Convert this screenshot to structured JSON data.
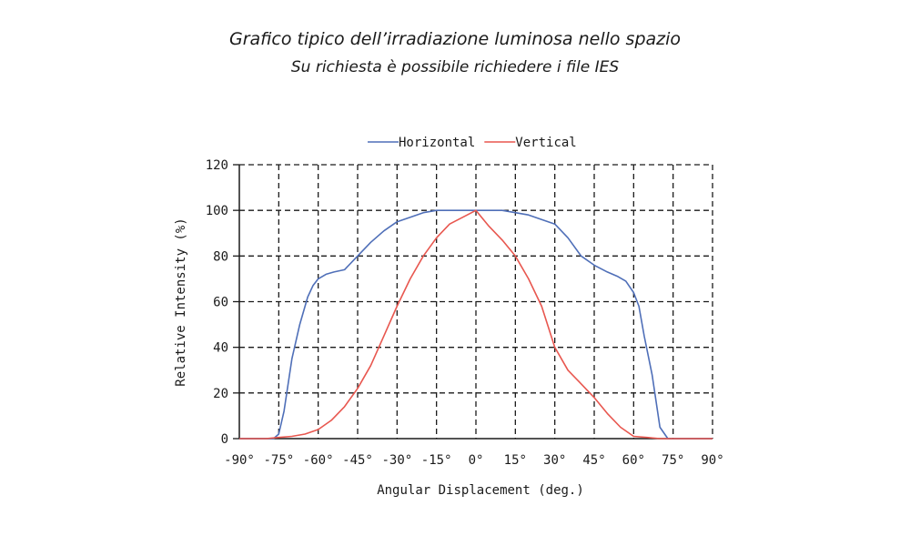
{
  "page": {
    "title": "Grafico tipico dell’irradiazione luminosa nello spazio",
    "subtitle": "Su richiesta è possibile richiedere i file IES"
  },
  "chart_data": {
    "type": "line",
    "xlabel": "Angular Displacement (deg.)",
    "ylabel": "Relative Intensity (%)",
    "xlim": [
      -90,
      90
    ],
    "ylim": [
      0,
      120
    ],
    "xticks": [
      -90,
      -75,
      -60,
      -45,
      -30,
      -15,
      0,
      15,
      30,
      45,
      60,
      75,
      90
    ],
    "xtick_labels": [
      "-90°",
      "-75°",
      "-60°",
      "-45°",
      "-30°",
      "-15°",
      "0°",
      "15°",
      "30°",
      "45°",
      "60°",
      "75°",
      "90°"
    ],
    "yticks": [
      0,
      20,
      40,
      60,
      80,
      100,
      120
    ],
    "ytick_labels": [
      "0",
      "20",
      "40",
      "60",
      "80",
      "100",
      "120"
    ],
    "grid": true,
    "grid_style": "dashed",
    "legend_position": "top",
    "series": [
      {
        "name": "Horizontal",
        "color": "#4f6fb8",
        "x": [
          -90,
          -77,
          -75,
          -73,
          -70,
          -67,
          -64,
          -62,
          -60,
          -57,
          -54,
          -50,
          -45,
          -40,
          -35,
          -30,
          -25,
          -20,
          -15,
          -10,
          -5,
          0,
          5,
          10,
          15,
          20,
          25,
          30,
          35,
          40,
          45,
          50,
          54,
          57,
          60,
          62,
          64,
          67,
          70,
          73,
          75,
          90
        ],
        "y": [
          0,
          0,
          2,
          12,
          35,
          50,
          62,
          67,
          70,
          72,
          73,
          74,
          80,
          86,
          91,
          95,
          97,
          99,
          100,
          100,
          100,
          100,
          100,
          100,
          99,
          98,
          96,
          94,
          88,
          80,
          76,
          73,
          71,
          69,
          64,
          58,
          45,
          28,
          5,
          0,
          0,
          0
        ]
      },
      {
        "name": "Vertical",
        "color": "#e8574f",
        "x": [
          -90,
          -80,
          -75,
          -70,
          -65,
          -60,
          -55,
          -50,
          -45,
          -40,
          -35,
          -30,
          -25,
          -20,
          -15,
          -10,
          -5,
          0,
          5,
          10,
          15,
          20,
          25,
          30,
          35,
          40,
          45,
          50,
          55,
          60,
          65,
          70,
          75,
          90
        ],
        "y": [
          0,
          0,
          0.5,
          1,
          2,
          4,
          8,
          14,
          22,
          32,
          45,
          58,
          70,
          80,
          88,
          94,
          97,
          100,
          93,
          87,
          80,
          70,
          58,
          40,
          30,
          24,
          18,
          11,
          5,
          1,
          0.5,
          0,
          0,
          0
        ]
      }
    ]
  }
}
